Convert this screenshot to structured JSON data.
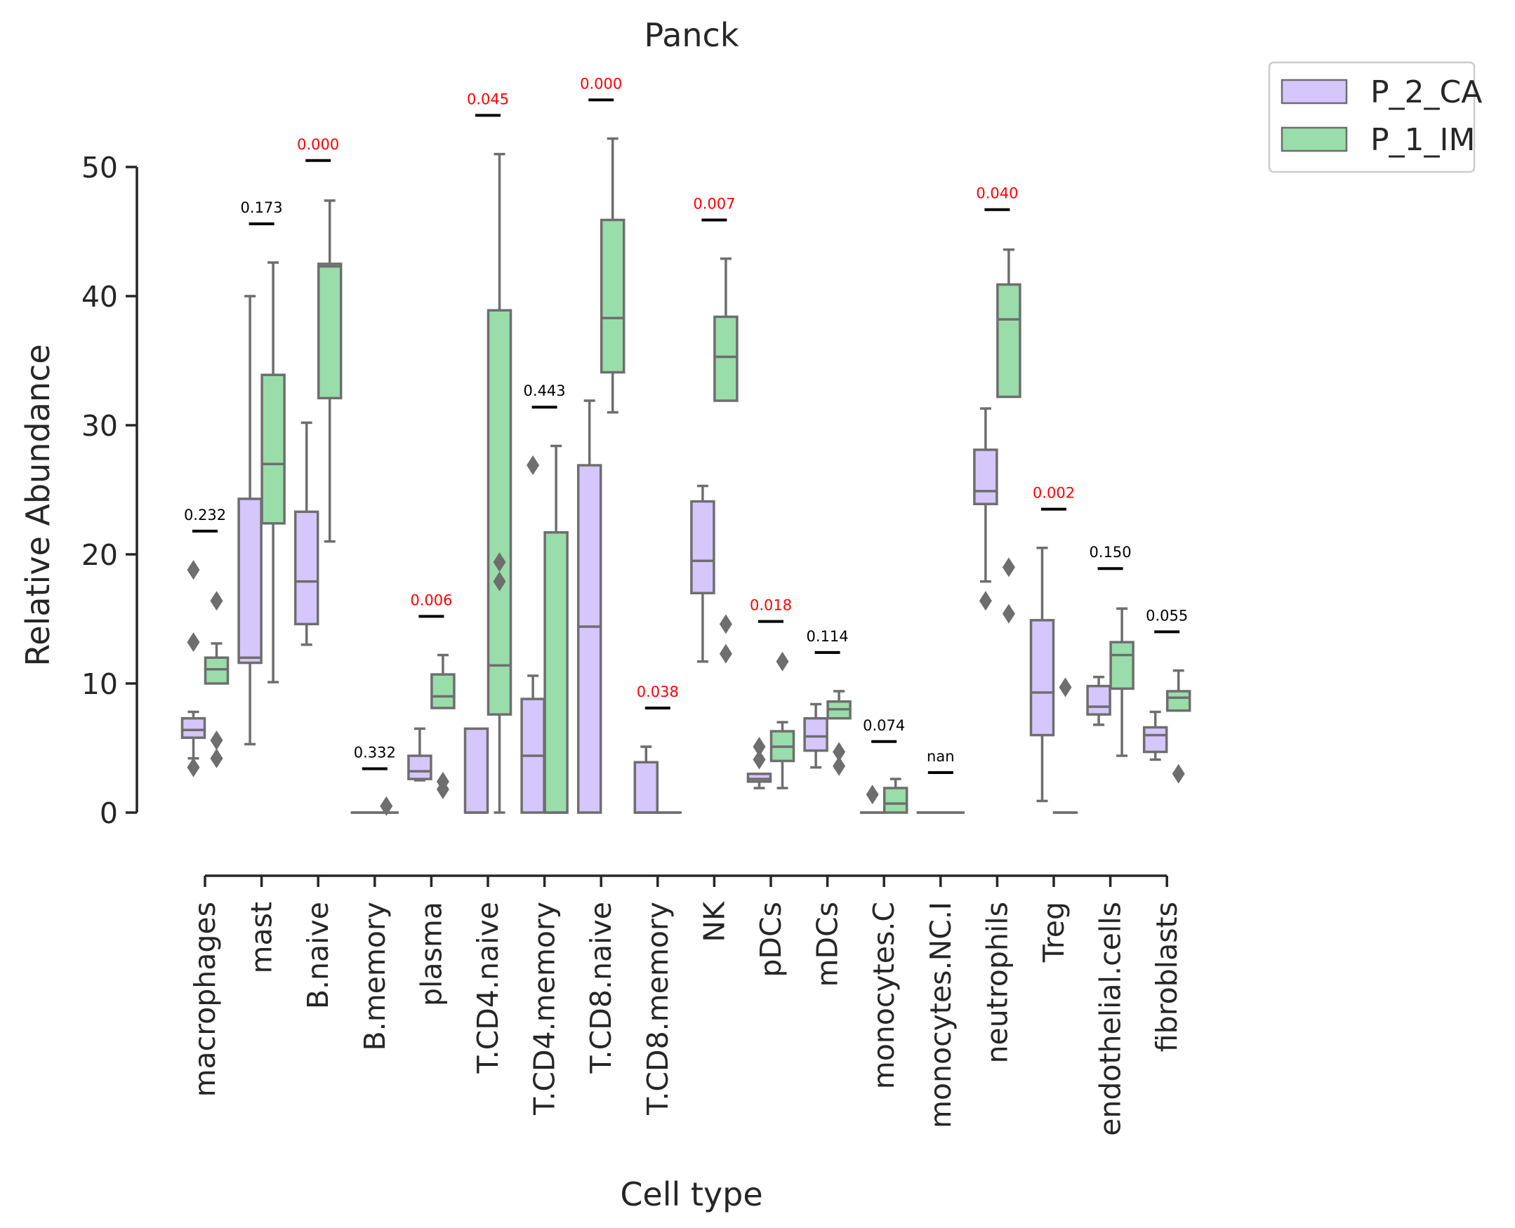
{
  "chart_data": {
    "type": "box",
    "title": "Panck",
    "xlabel": "Cell type",
    "ylabel": "Relative Abundance",
    "ylim": [
      -3.5,
      53
    ],
    "yticks": [
      0,
      10,
      20,
      30,
      40,
      50
    ],
    "grid": false,
    "legend_placement": "outside-top-right",
    "categories": [
      "macrophages",
      "mast",
      "B.naive",
      "B.memory",
      "plasma",
      "T.CD4.naive",
      "T.CD4.memory",
      "T.CD8.naive",
      "T.CD8.memory",
      "NK",
      "pDCs",
      "mDCs",
      "monocytes.C",
      "monocytes.NC.I",
      "neutrophils",
      "Treg",
      "endothelial.cells",
      "fibroblasts"
    ],
    "colors": {
      "P_2_CA": "#d5c6fb",
      "P_1_IM": "#99ddaa",
      "box_edge": "#6e6e6e",
      "significant": "#ff0000",
      "not_significant": "#000000"
    },
    "series": [
      {
        "name": "P_2_CA",
        "boxes": [
          {
            "whislo": 4.2,
            "q1": 5.8,
            "med": 6.4,
            "q3": 7.3,
            "whishi": 7.8,
            "fliers": [
              3.5,
              13.2,
              18.8
            ]
          },
          {
            "whislo": 5.3,
            "q1": 11.6,
            "med": 12.0,
            "q3": 24.3,
            "whishi": 40.0,
            "fliers": []
          },
          {
            "whislo": 13.0,
            "q1": 14.6,
            "med": 17.9,
            "q3": 23.3,
            "whishi": 30.2,
            "fliers": []
          },
          {
            "whislo": 0,
            "q1": 0,
            "med": 0,
            "q3": 0,
            "whishi": 0,
            "fliers": []
          },
          {
            "whislo": 2.5,
            "q1": 2.6,
            "med": 3.2,
            "q3": 4.4,
            "whishi": 6.5,
            "fliers": []
          },
          {
            "whislo": 0,
            "q1": 0,
            "med": 0,
            "q3": 6.5,
            "whishi": 6.5,
            "fliers": []
          },
          {
            "whislo": 0,
            "q1": 0,
            "med": 4.4,
            "q3": 8.8,
            "whishi": 10.6,
            "fliers": [
              26.9
            ]
          },
          {
            "whislo": 0,
            "q1": 0,
            "med": 14.4,
            "q3": 26.9,
            "whishi": 31.9,
            "fliers": []
          },
          {
            "whislo": 0,
            "q1": 0,
            "med": 0,
            "q3": 3.9,
            "whishi": 5.1,
            "fliers": []
          },
          {
            "whislo": 11.7,
            "q1": 17.0,
            "med": 19.5,
            "q3": 24.1,
            "whishi": 25.3,
            "fliers": []
          },
          {
            "whislo": 1.9,
            "q1": 2.4,
            "med": 2.6,
            "q3": 3.0,
            "whishi": 3.0,
            "fliers": [
              4.1,
              5.1
            ]
          },
          {
            "whislo": 3.5,
            "q1": 4.8,
            "med": 5.9,
            "q3": 7.3,
            "whishi": 8.4,
            "fliers": []
          },
          {
            "whislo": 0,
            "q1": 0,
            "med": 0,
            "q3": 0,
            "whishi": 0,
            "fliers": [
              1.4
            ]
          },
          {
            "whislo": 0,
            "q1": 0,
            "med": 0,
            "q3": 0,
            "whishi": 0,
            "fliers": []
          },
          {
            "whislo": 17.9,
            "q1": 23.9,
            "med": 24.9,
            "q3": 28.1,
            "whishi": 31.3,
            "fliers": [
              16.4
            ]
          },
          {
            "whislo": 0.9,
            "q1": 6.0,
            "med": 9.3,
            "q3": 14.9,
            "whishi": 20.5,
            "fliers": []
          },
          {
            "whislo": 6.8,
            "q1": 7.6,
            "med": 8.2,
            "q3": 9.8,
            "whishi": 10.5,
            "fliers": []
          },
          {
            "whislo": 4.1,
            "q1": 4.7,
            "med": 6.0,
            "q3": 6.6,
            "whishi": 7.8,
            "fliers": []
          }
        ]
      },
      {
        "name": "P_1_IM",
        "boxes": [
          {
            "whislo": 10.0,
            "q1": 10.0,
            "med": 11.1,
            "q3": 12.0,
            "whishi": 13.1,
            "fliers": [
              4.2,
              5.6,
              16.4
            ]
          },
          {
            "whislo": 10.1,
            "q1": 22.4,
            "med": 27.0,
            "q3": 33.9,
            "whishi": 42.6,
            "fliers": []
          },
          {
            "whislo": 21.0,
            "q1": 32.1,
            "med": 42.3,
            "q3": 42.5,
            "whishi": 47.4,
            "fliers": []
          },
          {
            "whislo": 0,
            "q1": 0,
            "med": 0,
            "q3": 0,
            "whishi": 0,
            "fliers": [
              0.5
            ]
          },
          {
            "whislo": 8.1,
            "q1": 8.1,
            "med": 9.0,
            "q3": 10.7,
            "whishi": 12.2,
            "fliers": [
              1.8,
              2.4
            ]
          },
          {
            "whislo": 0,
            "q1": 7.6,
            "med": 11.4,
            "q3": 38.9,
            "whishi": 51.0,
            "fliers": [
              17.9,
              19.4
            ]
          },
          {
            "whislo": 0,
            "q1": 0,
            "med": 0,
            "q3": 21.7,
            "whishi": 28.4,
            "fliers": []
          },
          {
            "whislo": 31.0,
            "q1": 34.1,
            "med": 38.3,
            "q3": 45.9,
            "whishi": 52.2,
            "fliers": []
          },
          {
            "whislo": 0,
            "q1": 0,
            "med": 0,
            "q3": 0,
            "whishi": 0,
            "fliers": []
          },
          {
            "whislo": 31.9,
            "q1": 31.9,
            "med": 35.3,
            "q3": 38.4,
            "whishi": 42.9,
            "fliers": [
              12.3,
              14.6
            ]
          },
          {
            "whislo": 1.9,
            "q1": 4.0,
            "med": 5.1,
            "q3": 6.3,
            "whishi": 7.0,
            "fliers": [
              11.7
            ]
          },
          {
            "whislo": 7.3,
            "q1": 7.3,
            "med": 8.0,
            "q3": 8.6,
            "whishi": 9.4,
            "fliers": [
              3.6,
              4.7
            ]
          },
          {
            "whislo": 0,
            "q1": 0,
            "med": 0.7,
            "q3": 1.9,
            "whishi": 2.6,
            "fliers": []
          },
          {
            "whislo": 0,
            "q1": 0,
            "med": 0,
            "q3": 0,
            "whishi": 0,
            "fliers": []
          },
          {
            "whislo": 32.2,
            "q1": 32.2,
            "med": 38.2,
            "q3": 40.9,
            "whishi": 43.6,
            "fliers": [
              15.4,
              19.0
            ]
          },
          {
            "whislo": 0,
            "q1": 0,
            "med": 0,
            "q3": 0,
            "whishi": 0,
            "fliers": [
              9.7
            ]
          },
          {
            "whislo": 4.4,
            "q1": 9.6,
            "med": 12.2,
            "q3": 13.2,
            "whishi": 15.8,
            "fliers": []
          },
          {
            "whislo": 7.9,
            "q1": 7.9,
            "med": 8.9,
            "q3": 9.4,
            "whishi": 11.0,
            "fliers": [
              3.0
            ]
          }
        ]
      }
    ],
    "annotations": [
      {
        "text": "0.232",
        "y": 21.8,
        "significant": false
      },
      {
        "text": "0.173",
        "y": 45.6,
        "significant": false
      },
      {
        "text": "0.000",
        "y": 50.5,
        "significant": true
      },
      {
        "text": "0.332",
        "y": 3.4,
        "significant": false
      },
      {
        "text": "0.006",
        "y": 15.2,
        "significant": true
      },
      {
        "text": "0.045",
        "y": 54.0,
        "significant": true
      },
      {
        "text": "0.443",
        "y": 31.4,
        "significant": false
      },
      {
        "text": "0.000",
        "y": 55.2,
        "significant": true
      },
      {
        "text": "0.038",
        "y": 8.1,
        "significant": true
      },
      {
        "text": "0.007",
        "y": 45.9,
        "significant": true
      },
      {
        "text": "0.018",
        "y": 14.8,
        "significant": true
      },
      {
        "text": "0.114",
        "y": 12.4,
        "significant": false
      },
      {
        "text": "0.074",
        "y": 5.5,
        "significant": false
      },
      {
        "text": "nan",
        "y": 3.1,
        "significant": false
      },
      {
        "text": "0.040",
        "y": 46.7,
        "significant": true
      },
      {
        "text": "0.002",
        "y": 23.5,
        "significant": true
      },
      {
        "text": "0.150",
        "y": 18.9,
        "significant": false
      },
      {
        "text": "0.055",
        "y": 14.0,
        "significant": false
      }
    ]
  }
}
